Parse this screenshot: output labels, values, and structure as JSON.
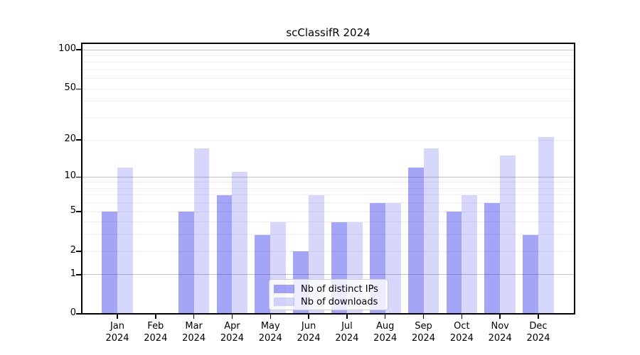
{
  "chart_data": {
    "type": "bar",
    "title": "scClassifR 2024",
    "categories": [
      "Jan",
      "Feb",
      "Mar",
      "Apr",
      "May",
      "Jun",
      "Jul",
      "Aug",
      "Sep",
      "Oct",
      "Nov",
      "Dec"
    ],
    "year_label": "2024",
    "series": [
      {
        "name": "Nb of distinct IPs",
        "values": [
          5,
          0,
          5,
          7,
          3,
          2,
          4,
          6,
          12,
          5,
          6,
          3
        ],
        "color": "rgba(40,40,235,0.42)"
      },
      {
        "name": "Nb of downloads",
        "values": [
          12,
          0,
          17,
          11,
          4,
          7,
          4,
          6,
          17,
          7,
          15,
          21
        ],
        "color": "rgba(40,40,235,0.19)"
      }
    ],
    "xlabel": "",
    "ylabel": "",
    "yscale": "log1p",
    "ylim": [
      0,
      113
    ],
    "yticks": [
      0,
      1,
      2,
      5,
      10,
      20,
      50,
      100
    ],
    "major_gridlines": [
      1,
      10,
      100
    ],
    "minor_gridlines": [
      2,
      3,
      4,
      5,
      6,
      7,
      8,
      9,
      20,
      30,
      40,
      50,
      60,
      70,
      80,
      90
    ],
    "grid": true,
    "legend_position": "lower center inside"
  },
  "colors": {
    "major_grid": "#c3c3c3",
    "minor_grid": "#ededed",
    "axis": "#000000",
    "background": "#ffffff"
  }
}
